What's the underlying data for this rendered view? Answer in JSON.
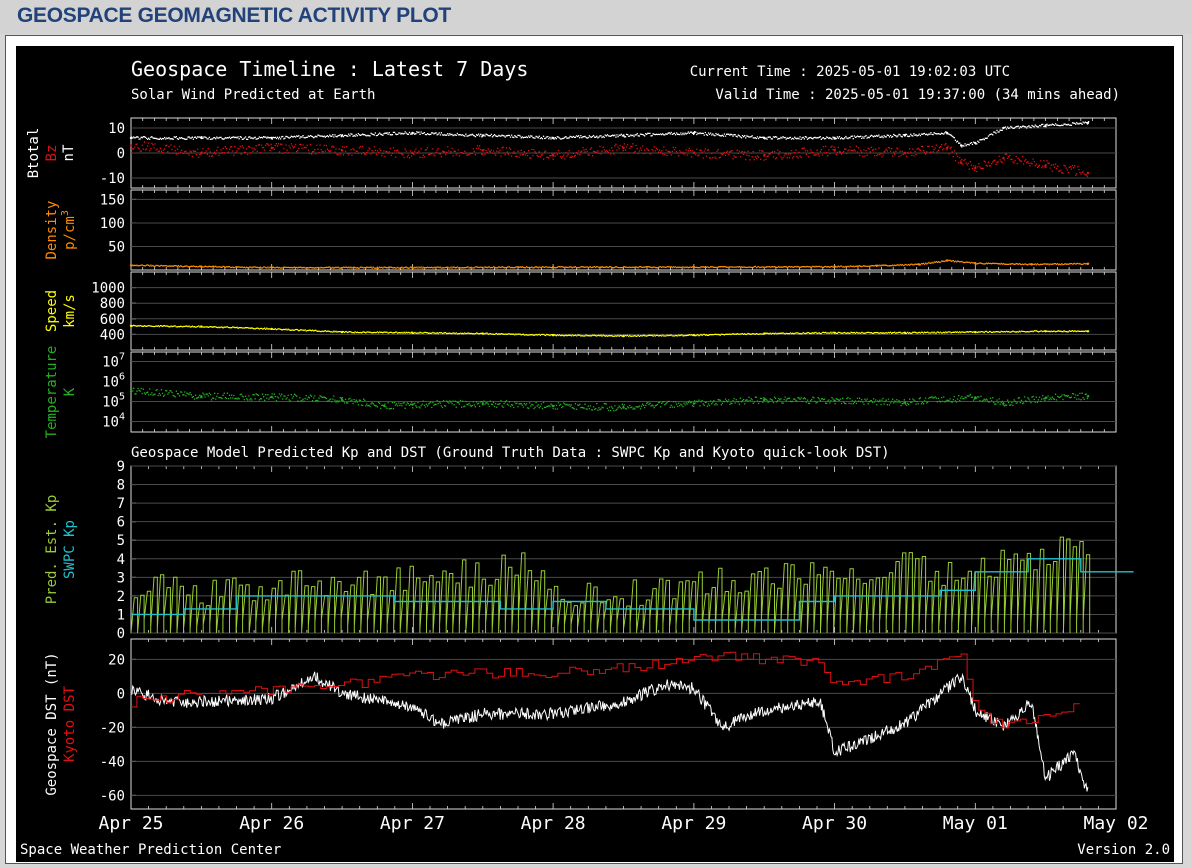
{
  "header": {
    "title": "GEOSPACE GEOMAGNETIC ACTIVITY PLOT"
  },
  "plot": {
    "title": "Geospace Timeline : Latest 7 Days",
    "subtitle": "Solar Wind Predicted at Earth",
    "current_time": "Current Time : 2025-05-01 19:02:03 UTC",
    "valid_time": "Valid Time : 2025-05-01 19:37:00 (34 mins ahead)",
    "section2_title": "Geospace Model Predicted Kp and DST (Ground Truth Data : SWPC Kp and Kyoto quick-look DST)",
    "footer_left": "Space Weather Prediction Center",
    "footer_right": "Version 2.0"
  },
  "colors": {
    "btotal": "#ffffff",
    "bz": "#e01010",
    "density": "#ff8c00",
    "speed": "#ffff00",
    "temperature": "#22b022",
    "pred_kp": "#9acd32",
    "swpc_kp": "#20c0d0",
    "geospace_dst": "#ffffff",
    "kyoto_dst": "#e01010"
  },
  "chart_data": [
    {
      "id": "mag",
      "type": "scatter",
      "ylabels": [
        "Btotal",
        "Bz",
        "nT"
      ],
      "yticks": [
        "10",
        "0",
        "-10"
      ],
      "ylim": [
        -14,
        14
      ],
      "series": [
        {
          "name": "Btotal",
          "x": [
            0,
            0.5,
            1,
            1.5,
            2,
            2.5,
            3,
            3.5,
            4,
            4.5,
            5,
            5.5,
            5.8,
            5.9,
            6,
            6.2,
            6.5,
            6.8
          ],
          "y": [
            6,
            6,
            6,
            7,
            8,
            7,
            6,
            7,
            8,
            6,
            6,
            7,
            8,
            3,
            4,
            10,
            11,
            12
          ]
        },
        {
          "name": "Bz",
          "x": [
            0,
            0.5,
            1,
            1.5,
            2,
            2.5,
            3,
            3.5,
            4,
            4.5,
            5,
            5.5,
            5.8,
            5.9,
            6,
            6.2,
            6.5,
            6.8
          ],
          "y": [
            3,
            0,
            2,
            1,
            0,
            1,
            -1,
            2,
            0,
            -1,
            1,
            0,
            2,
            -4,
            -6,
            -2,
            -5,
            -8
          ]
        }
      ]
    },
    {
      "id": "density",
      "type": "scatter",
      "ylabels": [
        "Density",
        "p/cm3"
      ],
      "yticks": [
        "150",
        "100",
        "50"
      ],
      "ylim": [
        0,
        170
      ],
      "series": [
        {
          "name": "Density",
          "x": [
            0,
            0.5,
            1,
            2,
            3,
            4,
            5,
            5.3,
            5.6,
            5.8,
            6,
            6.4,
            6.8
          ],
          "y": [
            10,
            7,
            5,
            5,
            6,
            6,
            7,
            9,
            12,
            20,
            14,
            12,
            13
          ]
        }
      ]
    },
    {
      "id": "speed",
      "type": "scatter",
      "ylabels": [
        "Speed",
        "km/s"
      ],
      "yticks": [
        "1000",
        "800",
        "600",
        "400"
      ],
      "ylim": [
        200,
        1200
      ],
      "series": [
        {
          "name": "Speed",
          "x": [
            0,
            0.5,
            1,
            1.5,
            2,
            2.5,
            3,
            3.5,
            4,
            4.5,
            5,
            5.5,
            6,
            6.5,
            6.8
          ],
          "y": [
            510,
            500,
            470,
            430,
            420,
            410,
            390,
            380,
            390,
            410,
            420,
            420,
            430,
            440,
            440
          ]
        }
      ]
    },
    {
      "id": "temperature",
      "type": "scatter",
      "ylabels": [
        "Temperature",
        "K"
      ],
      "yticks": [
        "10^7",
        "10^6",
        "10^5",
        "10^4"
      ],
      "ylim": [
        3000,
        30000000
      ],
      "series": [
        {
          "name": "Temperature",
          "x": [
            0,
            0.5,
            1,
            1.5,
            1.8,
            2,
            2.5,
            3,
            3.5,
            4,
            4.5,
            5,
            5.5,
            6,
            6.2,
            6.5,
            6.8
          ],
          "y": [
            320000,
            180000,
            170000,
            120000,
            60000,
            70000,
            80000,
            60000,
            50000,
            80000,
            120000,
            110000,
            90000,
            160000,
            80000,
            150000,
            180000
          ]
        }
      ]
    },
    {
      "id": "kp",
      "type": "line",
      "ylabels": [
        "Pred. Est. Kp",
        "SWPC Kp"
      ],
      "yticks": [
        "9",
        "8",
        "7",
        "6",
        "5",
        "4",
        "3",
        "2",
        "1",
        "0"
      ],
      "ylim": [
        0,
        9
      ],
      "series": [
        {
          "name": "Pred. Est. Kp",
          "x": [
            0,
            0.5,
            1,
            1.5,
            2,
            2.5,
            2.8,
            3,
            3.5,
            4,
            4.5,
            5,
            5.5,
            5.8,
            6,
            6.3,
            6.5,
            6.6,
            6.8
          ],
          "y": [
            2.7,
            2.2,
            2.5,
            2.7,
            3,
            3.3,
            3.8,
            2.2,
            2,
            2.7,
            3,
            3,
            3.8,
            3.2,
            3.5,
            4,
            4,
            5,
            4.7
          ]
        },
        {
          "name": "SWPC Kp",
          "x": [
            0,
            0.375,
            0.75,
            1.125,
            1.5,
            1.875,
            2.25,
            2.625,
            3,
            3.375,
            3.75,
            4,
            4.375,
            4.75,
            5,
            5.375,
            5.75,
            6,
            6.375,
            6.75
          ],
          "y": [
            1,
            1.3,
            2,
            2,
            2,
            1.7,
            1.7,
            1.3,
            1.7,
            1.3,
            1.3,
            0.7,
            0.7,
            1.7,
            2,
            2,
            2.3,
            3.3,
            4,
            3.3
          ]
        }
      ]
    },
    {
      "id": "dst",
      "type": "line",
      "ylabels": [
        "Geospace DST (nT)",
        "Kyoto DST"
      ],
      "yticks": [
        "20",
        "0",
        "-20",
        "-40",
        "-60"
      ],
      "ylim": [
        -68,
        32
      ],
      "series": [
        {
          "name": "Geospace DST (nT)",
          "x": [
            0,
            0.25,
            0.5,
            1,
            1.3,
            1.5,
            2,
            2.2,
            2.5,
            3,
            3.5,
            3.8,
            4,
            4.2,
            4.5,
            4.9,
            5,
            5.5,
            5.9,
            6,
            6.2,
            6.4,
            6.5,
            6.7,
            6.8
          ],
          "y": [
            3,
            -5,
            -5,
            -3,
            10,
            0,
            -8,
            -18,
            -12,
            -12,
            -5,
            5,
            3,
            -20,
            -10,
            -5,
            -35,
            -18,
            10,
            -10,
            -20,
            -5,
            -50,
            -35,
            -58
          ]
        },
        {
          "name": "Kyoto DST",
          "x": [
            0,
            0.5,
            1,
            1.5,
            2,
            2.5,
            3,
            3.5,
            4,
            4.2,
            4.5,
            4.9,
            5,
            5.5,
            5.9,
            6,
            6.2,
            6.5,
            6.7
          ],
          "y": [
            -5,
            0,
            2,
            5,
            10,
            12,
            12,
            15,
            20,
            22,
            20,
            18,
            5,
            10,
            22,
            -10,
            -20,
            -15,
            -8
          ]
        }
      ]
    }
  ],
  "xticks": [
    "Apr 25",
    "Apr 26",
    "Apr 27",
    "Apr 28",
    "Apr 29",
    "Apr 30",
    "May 01",
    "May 02"
  ]
}
